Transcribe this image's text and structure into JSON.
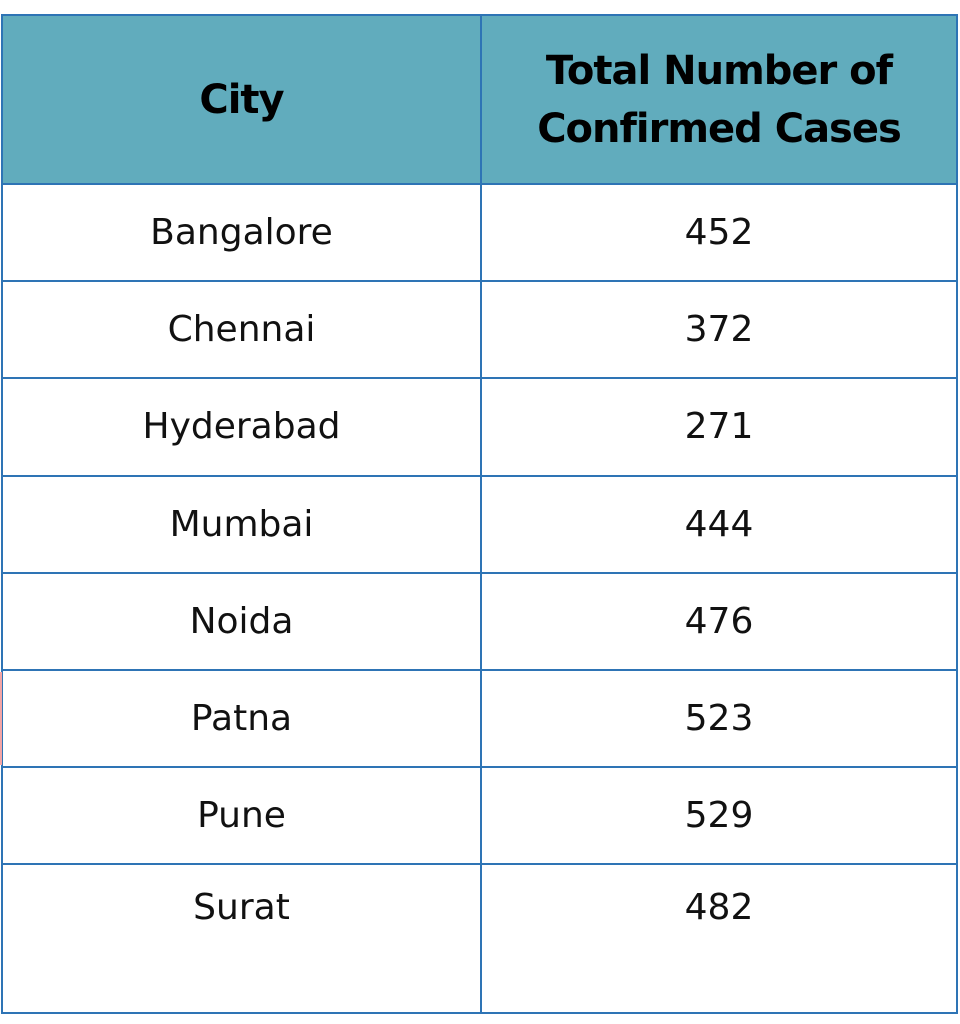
{
  "colors": {
    "header_bg": "#61acbd",
    "border": "#2e74b5",
    "text": "#111111"
  },
  "table": {
    "headers": [
      "City",
      "Total Number of\nConfirmed Cases"
    ],
    "rows": [
      [
        "Bangalore",
        "452"
      ],
      [
        "Chennai",
        "372"
      ],
      [
        "Hyderabad",
        "271"
      ],
      [
        "Mumbai",
        "444"
      ],
      [
        "Noida",
        "476"
      ],
      [
        "Patna",
        "523"
      ],
      [
        "Pune",
        "529"
      ],
      [
        "Surat",
        "482"
      ]
    ]
  },
  "chart_data": {
    "type": "table",
    "columns": [
      "City",
      "Total Number of Confirmed Cases"
    ],
    "rows": [
      [
        "Bangalore",
        452
      ],
      [
        "Chennai",
        372
      ],
      [
        "Hyderabad",
        271
      ],
      [
        "Mumbai",
        444
      ],
      [
        "Noida",
        476
      ],
      [
        "Patna",
        523
      ],
      [
        "Pune",
        529
      ],
      [
        "Surat",
        482
      ]
    ]
  }
}
